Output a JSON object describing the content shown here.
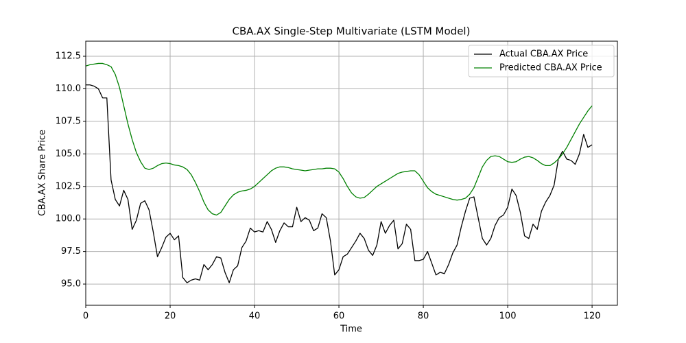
{
  "chart_data": {
    "type": "line",
    "title": "CBA.AX Single-Step Multivariate (LSTM Model)",
    "x_label": "Time",
    "y_label": "CBA.AX Share Price",
    "x": [
      0,
      1,
      2,
      3,
      4,
      5,
      6,
      7,
      8,
      9,
      10,
      11,
      12,
      13,
      14,
      15,
      16,
      17,
      18,
      19,
      20,
      21,
      22,
      23,
      24,
      25,
      26,
      27,
      28,
      29,
      30,
      31,
      32,
      33,
      34,
      35,
      36,
      37,
      38,
      39,
      40,
      41,
      42,
      43,
      44,
      45,
      46,
      47,
      48,
      49,
      50,
      51,
      52,
      53,
      54,
      55,
      56,
      57,
      58,
      59,
      60,
      61,
      62,
      63,
      64,
      65,
      66,
      67,
      68,
      69,
      70,
      71,
      72,
      73,
      74,
      75,
      76,
      77,
      78,
      79,
      80,
      81,
      82,
      83,
      84,
      85,
      86,
      87,
      88,
      89,
      90,
      91,
      92,
      93,
      94,
      95,
      96,
      97,
      98,
      99,
      100,
      101,
      102,
      103,
      104,
      105,
      106,
      107,
      108,
      109,
      110,
      111,
      112,
      113,
      114,
      115,
      116,
      117,
      118,
      119,
      120
    ],
    "series": [
      {
        "name": "Actual CBA.AX Price",
        "color": "#000000",
        "values": [
          110.3,
          110.3,
          110.2,
          110.0,
          109.3,
          109.3,
          103.0,
          101.5,
          101.0,
          102.2,
          101.5,
          99.2,
          99.9,
          101.2,
          101.4,
          100.7,
          99.0,
          97.1,
          97.8,
          98.6,
          98.9,
          98.4,
          98.7,
          95.5,
          95.1,
          95.3,
          95.4,
          95.3,
          96.5,
          96.1,
          96.5,
          97.1,
          97.0,
          95.9,
          95.1,
          96.1,
          96.4,
          97.8,
          98.3,
          99.3,
          99.0,
          99.1,
          99.0,
          99.8,
          99.2,
          98.2,
          99.1,
          99.7,
          99.4,
          99.4,
          100.9,
          99.8,
          100.1,
          99.9,
          99.1,
          99.3,
          100.4,
          100.1,
          98.3,
          95.7,
          96.1,
          97.1,
          97.3,
          97.8,
          98.3,
          98.9,
          98.5,
          97.6,
          97.2,
          98.0,
          99.8,
          98.9,
          99.5,
          99.9,
          97.7,
          98.1,
          99.6,
          99.2,
          96.8,
          96.8,
          96.9,
          97.5,
          96.6,
          95.7,
          95.9,
          95.8,
          96.5,
          97.4,
          98.0,
          99.4,
          100.6,
          101.6,
          101.7,
          100.1,
          98.5,
          98.0,
          98.5,
          99.5,
          100.1,
          100.3,
          100.9,
          102.3,
          101.8,
          100.5,
          98.7,
          98.5,
          99.6,
          99.2,
          100.6,
          101.3,
          101.8,
          102.6,
          104.6,
          105.2,
          104.6,
          104.5,
          104.2,
          105.0,
          106.5,
          105.5,
          105.7
        ]
      },
      {
        "name": "Predicted CBA.AX Price",
        "color": "#008000",
        "values": [
          111.75,
          111.85,
          111.9,
          111.95,
          111.95,
          111.85,
          111.7,
          111.1,
          110.1,
          108.7,
          107.3,
          106.1,
          105.1,
          104.4,
          103.9,
          103.8,
          103.9,
          104.1,
          104.25,
          104.3,
          104.25,
          104.15,
          104.1,
          104.0,
          103.8,
          103.4,
          102.8,
          102.1,
          101.3,
          100.7,
          100.4,
          100.3,
          100.5,
          101.0,
          101.5,
          101.85,
          102.05,
          102.15,
          102.2,
          102.3,
          102.5,
          102.8,
          103.1,
          103.4,
          103.7,
          103.9,
          104.0,
          104.0,
          103.95,
          103.85,
          103.8,
          103.75,
          103.7,
          103.75,
          103.8,
          103.85,
          103.85,
          103.9,
          103.9,
          103.85,
          103.6,
          103.1,
          102.5,
          102.0,
          101.7,
          101.6,
          101.65,
          101.9,
          102.2,
          102.5,
          102.7,
          102.9,
          103.1,
          103.3,
          103.5,
          103.6,
          103.65,
          103.7,
          103.7,
          103.4,
          102.9,
          102.4,
          102.1,
          101.9,
          101.8,
          101.7,
          101.6,
          101.5,
          101.45,
          101.5,
          101.6,
          101.9,
          102.4,
          103.2,
          104.0,
          104.5,
          104.8,
          104.85,
          104.8,
          104.6,
          104.4,
          104.35,
          104.4,
          104.6,
          104.75,
          104.8,
          104.7,
          104.5,
          104.25,
          104.1,
          104.1,
          104.3,
          104.6,
          105.0,
          105.5,
          106.1,
          106.7,
          107.3,
          107.8,
          108.3,
          108.7
        ]
      }
    ],
    "xlim": [
      0,
      126
    ],
    "ylim": [
      93.37,
      113.66
    ],
    "xticks": [
      0,
      20,
      40,
      60,
      80,
      100,
      120
    ],
    "yticks": [
      {
        "value": 95,
        "label": "95.0"
      },
      97.5,
      {
        "value": 100,
        "label": "100.0"
      },
      102.5,
      {
        "value": 105,
        "label": "105.0"
      },
      107.5,
      {
        "value": 110,
        "label": "110.0"
      },
      112.5
    ],
    "grid": true,
    "legend": "upper right"
  }
}
